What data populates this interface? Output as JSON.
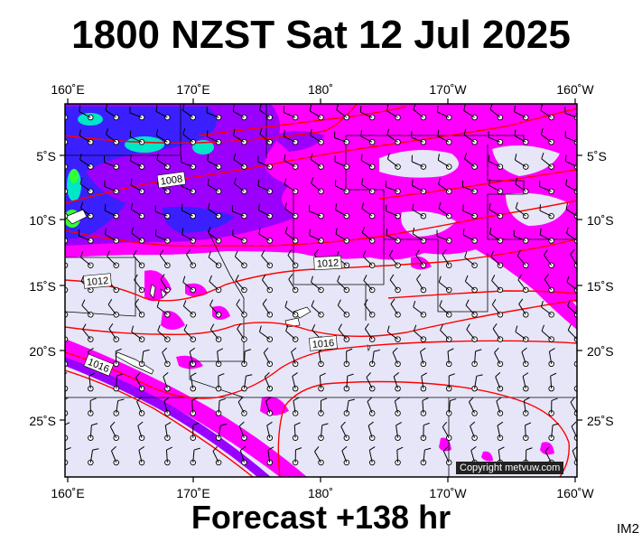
{
  "title": "1800 NZST Sat 12 Jul 2025",
  "footer": "Forecast +138 hr",
  "image_code": "IM2",
  "copyright": "Copyright metvuw.com",
  "lon_labels_top": [
    "160˚E",
    "170˚E",
    "180˚",
    "170˚W",
    "160˚W"
  ],
  "lon_labels_bottom": [
    "160˚E",
    "170˚E",
    "180˚",
    "170˚W",
    "160˚W"
  ],
  "lat_labels_left": [
    "5˚S",
    "10˚S",
    "15˚S",
    "20˚S",
    "25˚S"
  ],
  "lat_labels_right": [
    "5˚S",
    "10˚S",
    "15˚S",
    "20˚S",
    "25˚S"
  ],
  "isobar_labels": [
    "1008",
    "1012",
    "1012",
    "1016",
    "1016"
  ],
  "colors": {
    "background_sea": "#e6e6f8",
    "isobar": "#ff0000",
    "rain_light": "#ff00ff",
    "rain_moderate": "#9b00ff",
    "rain_heavy": "#3a20ff",
    "rain_very_heavy": "#00e6c8",
    "rain_extreme": "#33ff33",
    "land": "#ffffff"
  }
}
